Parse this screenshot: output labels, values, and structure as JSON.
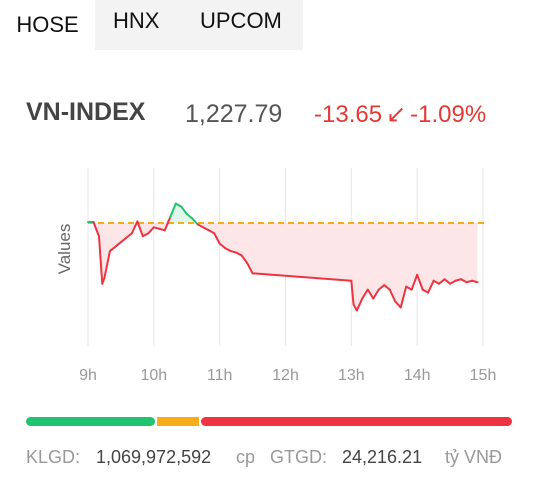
{
  "tabs": [
    {
      "label": "HOSE",
      "active": true
    },
    {
      "label": "HNX",
      "active": false
    },
    {
      "label": "UPCOM",
      "active": false
    }
  ],
  "index": {
    "name": "VN-INDEX",
    "value": "1,227.79",
    "change": "-13.65",
    "change_arrow": "↙",
    "change_pct": "-1.09%"
  },
  "colors": {
    "up": "#20c36f",
    "reference": "#f6ad17",
    "down": "#ef3340",
    "down_fill": "#fde6e8",
    "grid": "#e6e6e6"
  },
  "chart_data": {
    "type": "line",
    "ylabel": "Values",
    "xlabel": "",
    "x_ticks": [
      "9h",
      "10h",
      "11h",
      "12h",
      "13h",
      "14h",
      "15h"
    ],
    "reference_value": 1241.44,
    "ylim": [
      1200,
      1260
    ],
    "grid": "vertical",
    "series": [
      {
        "x": [
          "09:00",
          "09:05",
          "09:10",
          "09:13",
          "09:15",
          "09:20",
          "09:30",
          "09:40",
          "09:45",
          "09:50",
          "09:55",
          "10:00",
          "10:05",
          "10:10",
          "10:15",
          "10:20",
          "10:25",
          "10:30",
          "10:35",
          "10:40",
          "10:45",
          "10:50",
          "10:55",
          "11:00",
          "11:05",
          "11:10",
          "11:15",
          "11:20",
          "11:25",
          "11:30",
          "13:00",
          "13:02",
          "13:05",
          "13:10",
          "13:15",
          "13:20",
          "13:25",
          "13:30",
          "13:35",
          "13:40",
          "13:45",
          "13:50",
          "13:55",
          "14:00",
          "14:05",
          "14:10",
          "14:15",
          "14:20",
          "14:25",
          "14:30",
          "14:35",
          "14:40",
          "14:45",
          "14:50",
          "14:55"
        ],
        "values": [
          1241.8,
          1241.8,
          1237.0,
          1221.0,
          1223.0,
          1232.0,
          1235.0,
          1238.0,
          1242.0,
          1237.0,
          1238.0,
          1240.0,
          1239.5,
          1239.0,
          1243.5,
          1248.0,
          1247.0,
          1244.5,
          1243.0,
          1241.0,
          1240.0,
          1239.0,
          1238.0,
          1234.5,
          1233.0,
          1232.0,
          1231.5,
          1230.5,
          1228.0,
          1224.5,
          1222.0,
          1214.0,
          1212.0,
          1216.0,
          1219.0,
          1216.0,
          1219.0,
          1220.5,
          1219.0,
          1215.0,
          1213.0,
          1220.0,
          1219.0,
          1224.0,
          1219.0,
          1218.0,
          1222.0,
          1221.0,
          1222.5,
          1221.0,
          1222.0,
          1222.5,
          1221.5,
          1222.0,
          1221.5
        ]
      }
    ]
  },
  "breadth": {
    "up_fraction": 0.27,
    "flat_fraction": 0.09,
    "down_fraction": 0.64
  },
  "volume": {
    "klgd_label": "KLGD:",
    "klgd_value": "1,069,972,592",
    "klgd_unit": "cp",
    "gtgd_label": "GTGD:",
    "gtgd_value": "24,216.21",
    "gtgd_unit": "tỷ VNĐ"
  }
}
